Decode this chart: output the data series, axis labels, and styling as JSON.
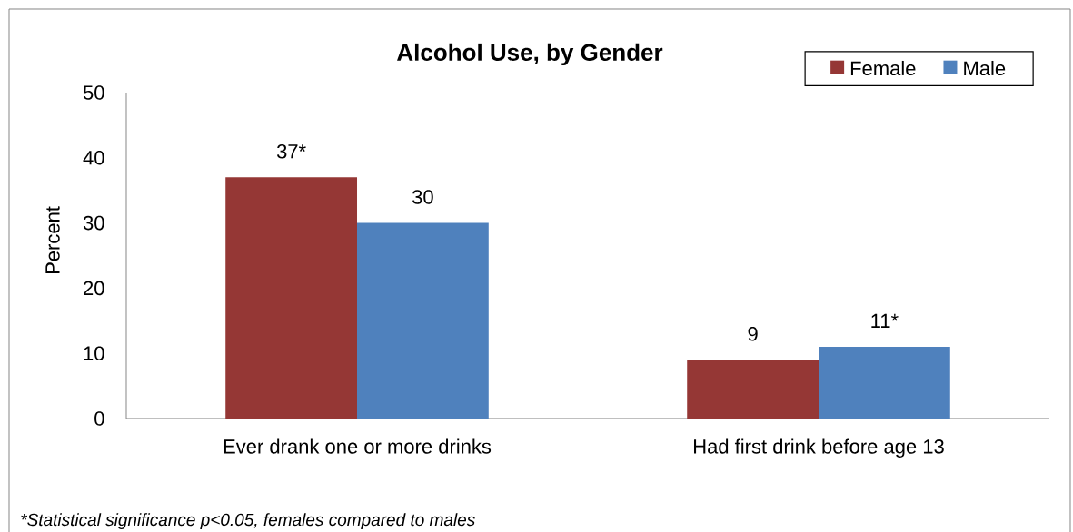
{
  "chart_data": {
    "type": "bar",
    "title": "Alcohol Use, by Gender",
    "ylabel": "Percent",
    "categories": [
      "Ever drank one or more drinks",
      "Had first drink before age 13"
    ],
    "series": [
      {
        "name": "Female",
        "color": "#953735",
        "values": [
          37,
          9
        ],
        "value_labels": [
          "37*",
          "9"
        ]
      },
      {
        "name": "Male",
        "color": "#4f81bd",
        "values": [
          30,
          11
        ],
        "value_labels": [
          "30",
          "11*"
        ]
      }
    ],
    "ylim": [
      0,
      50
    ],
    "yticks": [
      0,
      10,
      20,
      30,
      40,
      50
    ],
    "legend": "top right",
    "annotations": [
      "*Statistical significance p<0.05, females compared to males"
    ]
  }
}
